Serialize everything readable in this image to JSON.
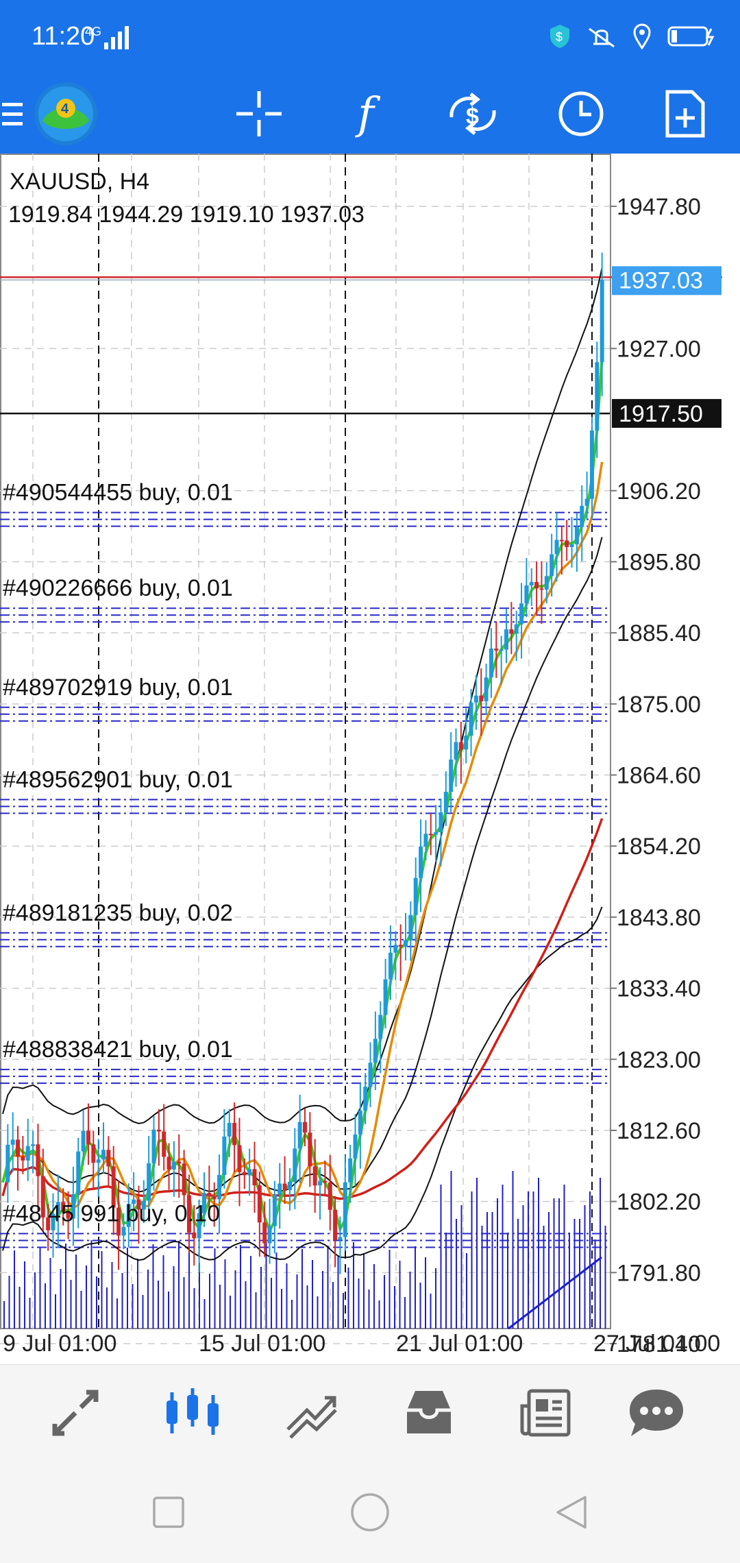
{
  "status_bar": {
    "time": "11:20",
    "network": "4G",
    "icons": [
      "signal-icon",
      "shield-icon",
      "vibrate-icon",
      "location-icon",
      "battery-icon"
    ]
  },
  "toolbar": {
    "buttons": [
      "menu-icon",
      "app-logo-icon",
      "crosshair-icon",
      "indicators-icon",
      "trade-icon",
      "timeframe-icon",
      "new-order-icon"
    ],
    "indicator_glyph": "f"
  },
  "chart": {
    "symbol_timeframe": "XAUUSD, H4",
    "ohlc": "1919.84 1944.29 1919.10 1937.03",
    "current_price": "1937.03",
    "crosshair_price": "1917.50",
    "price_ticks": [
      "1947.80",
      "1927.00",
      "1906.20",
      "1895.80",
      "1885.40",
      "1875.00",
      "1864.60",
      "1854.20",
      "1843.80",
      "1833.40",
      "1823.00",
      "1812.60",
      "1802.20",
      "1791.80",
      "1781.40"
    ],
    "time_ticks": [
      "9 Jul 01:00",
      "15 Jul 01:00",
      "21 Jul 01:00",
      "27 Jul 01:00"
    ],
    "orders": [
      {
        "label": "#490544455 buy, 0.01",
        "price": 1902.0
      },
      {
        "label": "#490226666 buy, 0.01",
        "price": 1888.0
      },
      {
        "label": "#489702919 buy, 0.01",
        "price": 1873.5
      },
      {
        "label": "#489562901 buy, 0.01",
        "price": 1860.0
      },
      {
        "label": "#489181235 buy, 0.02",
        "price": 1840.5
      },
      {
        "label": "#488838421 buy, 0.01",
        "price": 1820.5
      },
      {
        "label": "#48 45 991 buy, 0.10",
        "price": 1796.5
      }
    ],
    "colors": {
      "bull_candle": "#1e9bd7",
      "bear_candle": "#d0282a",
      "fast_ma": "#3ecb1a",
      "mid_ma": "#e68a00",
      "slow_ma": "#d0201a",
      "bands": "#111111",
      "volume": "#2020c8",
      "order_line": "#2828c8",
      "current_price_bg": "#3da0f0"
    }
  },
  "bottom_nav": {
    "items": [
      "quotes-icon",
      "chart-icon",
      "trade-history-icon",
      "history-icon",
      "news-icon",
      "chat-icon"
    ],
    "active_index": 1
  },
  "system_nav": [
    "recents-button",
    "home-button",
    "back-button"
  ]
}
